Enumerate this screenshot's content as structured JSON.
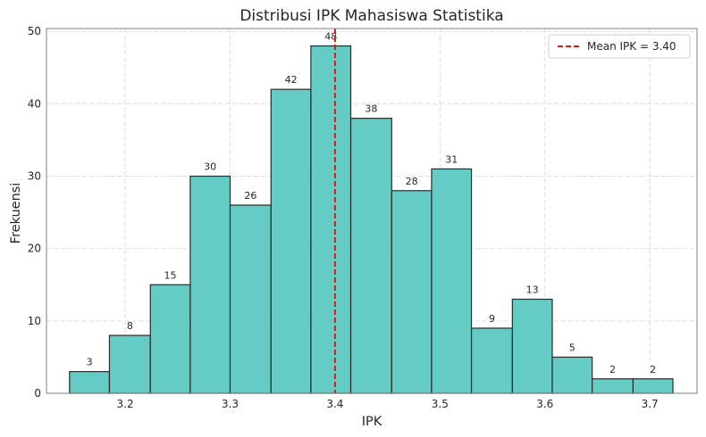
{
  "chart_data": {
    "type": "bar",
    "title": "Distribusi IPK Mahasiswa Statistika",
    "xlabel": "IPK",
    "ylabel": "Frekuensi",
    "xlim": [
      3.125,
      3.745
    ],
    "ylim": [
      0,
      50.4
    ],
    "xticks": [
      3.2,
      3.3,
      3.4,
      3.5,
      3.6,
      3.7
    ],
    "xtick_labels": [
      "3.2",
      "3.3",
      "3.4",
      "3.5",
      "3.6",
      "3.7"
    ],
    "yticks": [
      0,
      10,
      20,
      30,
      40,
      50
    ],
    "ytick_labels": [
      "0",
      "10",
      "20",
      "30",
      "40",
      "50"
    ],
    "bins": [
      {
        "start": 3.147,
        "end": 3.185,
        "value": 3
      },
      {
        "start": 3.185,
        "end": 3.224,
        "value": 8
      },
      {
        "start": 3.224,
        "end": 3.262,
        "value": 15
      },
      {
        "start": 3.262,
        "end": 3.3,
        "value": 30
      },
      {
        "start": 3.3,
        "end": 3.339,
        "value": 26
      },
      {
        "start": 3.339,
        "end": 3.377,
        "value": 42
      },
      {
        "start": 3.377,
        "end": 3.415,
        "value": 48
      },
      {
        "start": 3.415,
        "end": 3.454,
        "value": 38
      },
      {
        "start": 3.454,
        "end": 3.492,
        "value": 28
      },
      {
        "start": 3.492,
        "end": 3.53,
        "value": 31
      },
      {
        "start": 3.53,
        "end": 3.569,
        "value": 9
      },
      {
        "start": 3.569,
        "end": 3.607,
        "value": 13
      },
      {
        "start": 3.607,
        "end": 3.645,
        "value": 5
      },
      {
        "start": 3.645,
        "end": 3.684,
        "value": 2
      },
      {
        "start": 3.684,
        "end": 3.722,
        "value": 2
      }
    ],
    "mean": 3.4,
    "legend": {
      "label": "Mean IPK = 3.40",
      "position": "top-right"
    },
    "grid": true,
    "colors": {
      "bar": "#4ec5bc",
      "bar_edge": "#2b2b2b",
      "mean_line": "#e3170a",
      "grid": "#dddddd",
      "frame": "#7f7f7f"
    }
  }
}
